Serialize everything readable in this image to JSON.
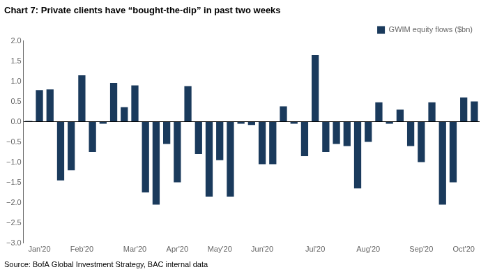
{
  "chart_data": {
    "type": "bar",
    "title": "Chart 7: Private clients have “bought-the-dip” in past two weeks",
    "source": "Source: BofA Global Investment Strategy, BAC internal data",
    "categories": [
      null,
      "Jan'20",
      null,
      null,
      null,
      "Feb'20",
      null,
      null,
      null,
      null,
      "Mar'20",
      null,
      null,
      null,
      "Apr'20",
      null,
      null,
      null,
      "May'20",
      null,
      null,
      null,
      "Jun'20",
      null,
      null,
      null,
      null,
      "Jul'20",
      null,
      null,
      null,
      null,
      "Aug'20",
      null,
      null,
      null,
      null,
      "Sep'20",
      null,
      null,
      null,
      "Oct'20",
      null
    ],
    "series": [
      {
        "name": "GWIM equity flows ($bn)",
        "color": "#1a3a5c",
        "values": [
          0.02,
          0.78,
          0.8,
          -1.45,
          -1.2,
          1.15,
          -0.75,
          -0.05,
          0.96,
          0.36,
          0.9,
          -1.75,
          -2.05,
          -0.55,
          -1.5,
          0.88,
          -0.8,
          -1.85,
          -0.95,
          -1.85,
          -0.05,
          -0.08,
          -1.05,
          -1.05,
          0.38,
          -0.05,
          -0.85,
          1.65,
          -0.75,
          -0.55,
          -0.6,
          -1.65,
          -0.5,
          0.48,
          -0.05,
          0.3,
          -0.6,
          -1.0,
          0.48,
          -2.05,
          -1.5,
          0.6,
          0.5
        ]
      }
    ],
    "ylim": [
      -3.0,
      2.0
    ],
    "yticks": [
      {
        "value": -3.0,
        "label": "−3.0"
      },
      {
        "value": -2.5,
        "label": "−2.5"
      },
      {
        "value": -2.0,
        "label": "−2.0"
      },
      {
        "value": -1.5,
        "label": "−1.5"
      },
      {
        "value": -1.0,
        "label": "−1.0"
      },
      {
        "value": -0.5,
        "label": "−0.5"
      },
      {
        "value": 0.0,
        "label": "0.0"
      },
      0.5,
      {
        "value": 1.0,
        "label": "1.0"
      },
      1.5,
      {
        "value": 2.0,
        "label": "2.0"
      }
    ],
    "grid": false,
    "legend": "upper right"
  }
}
